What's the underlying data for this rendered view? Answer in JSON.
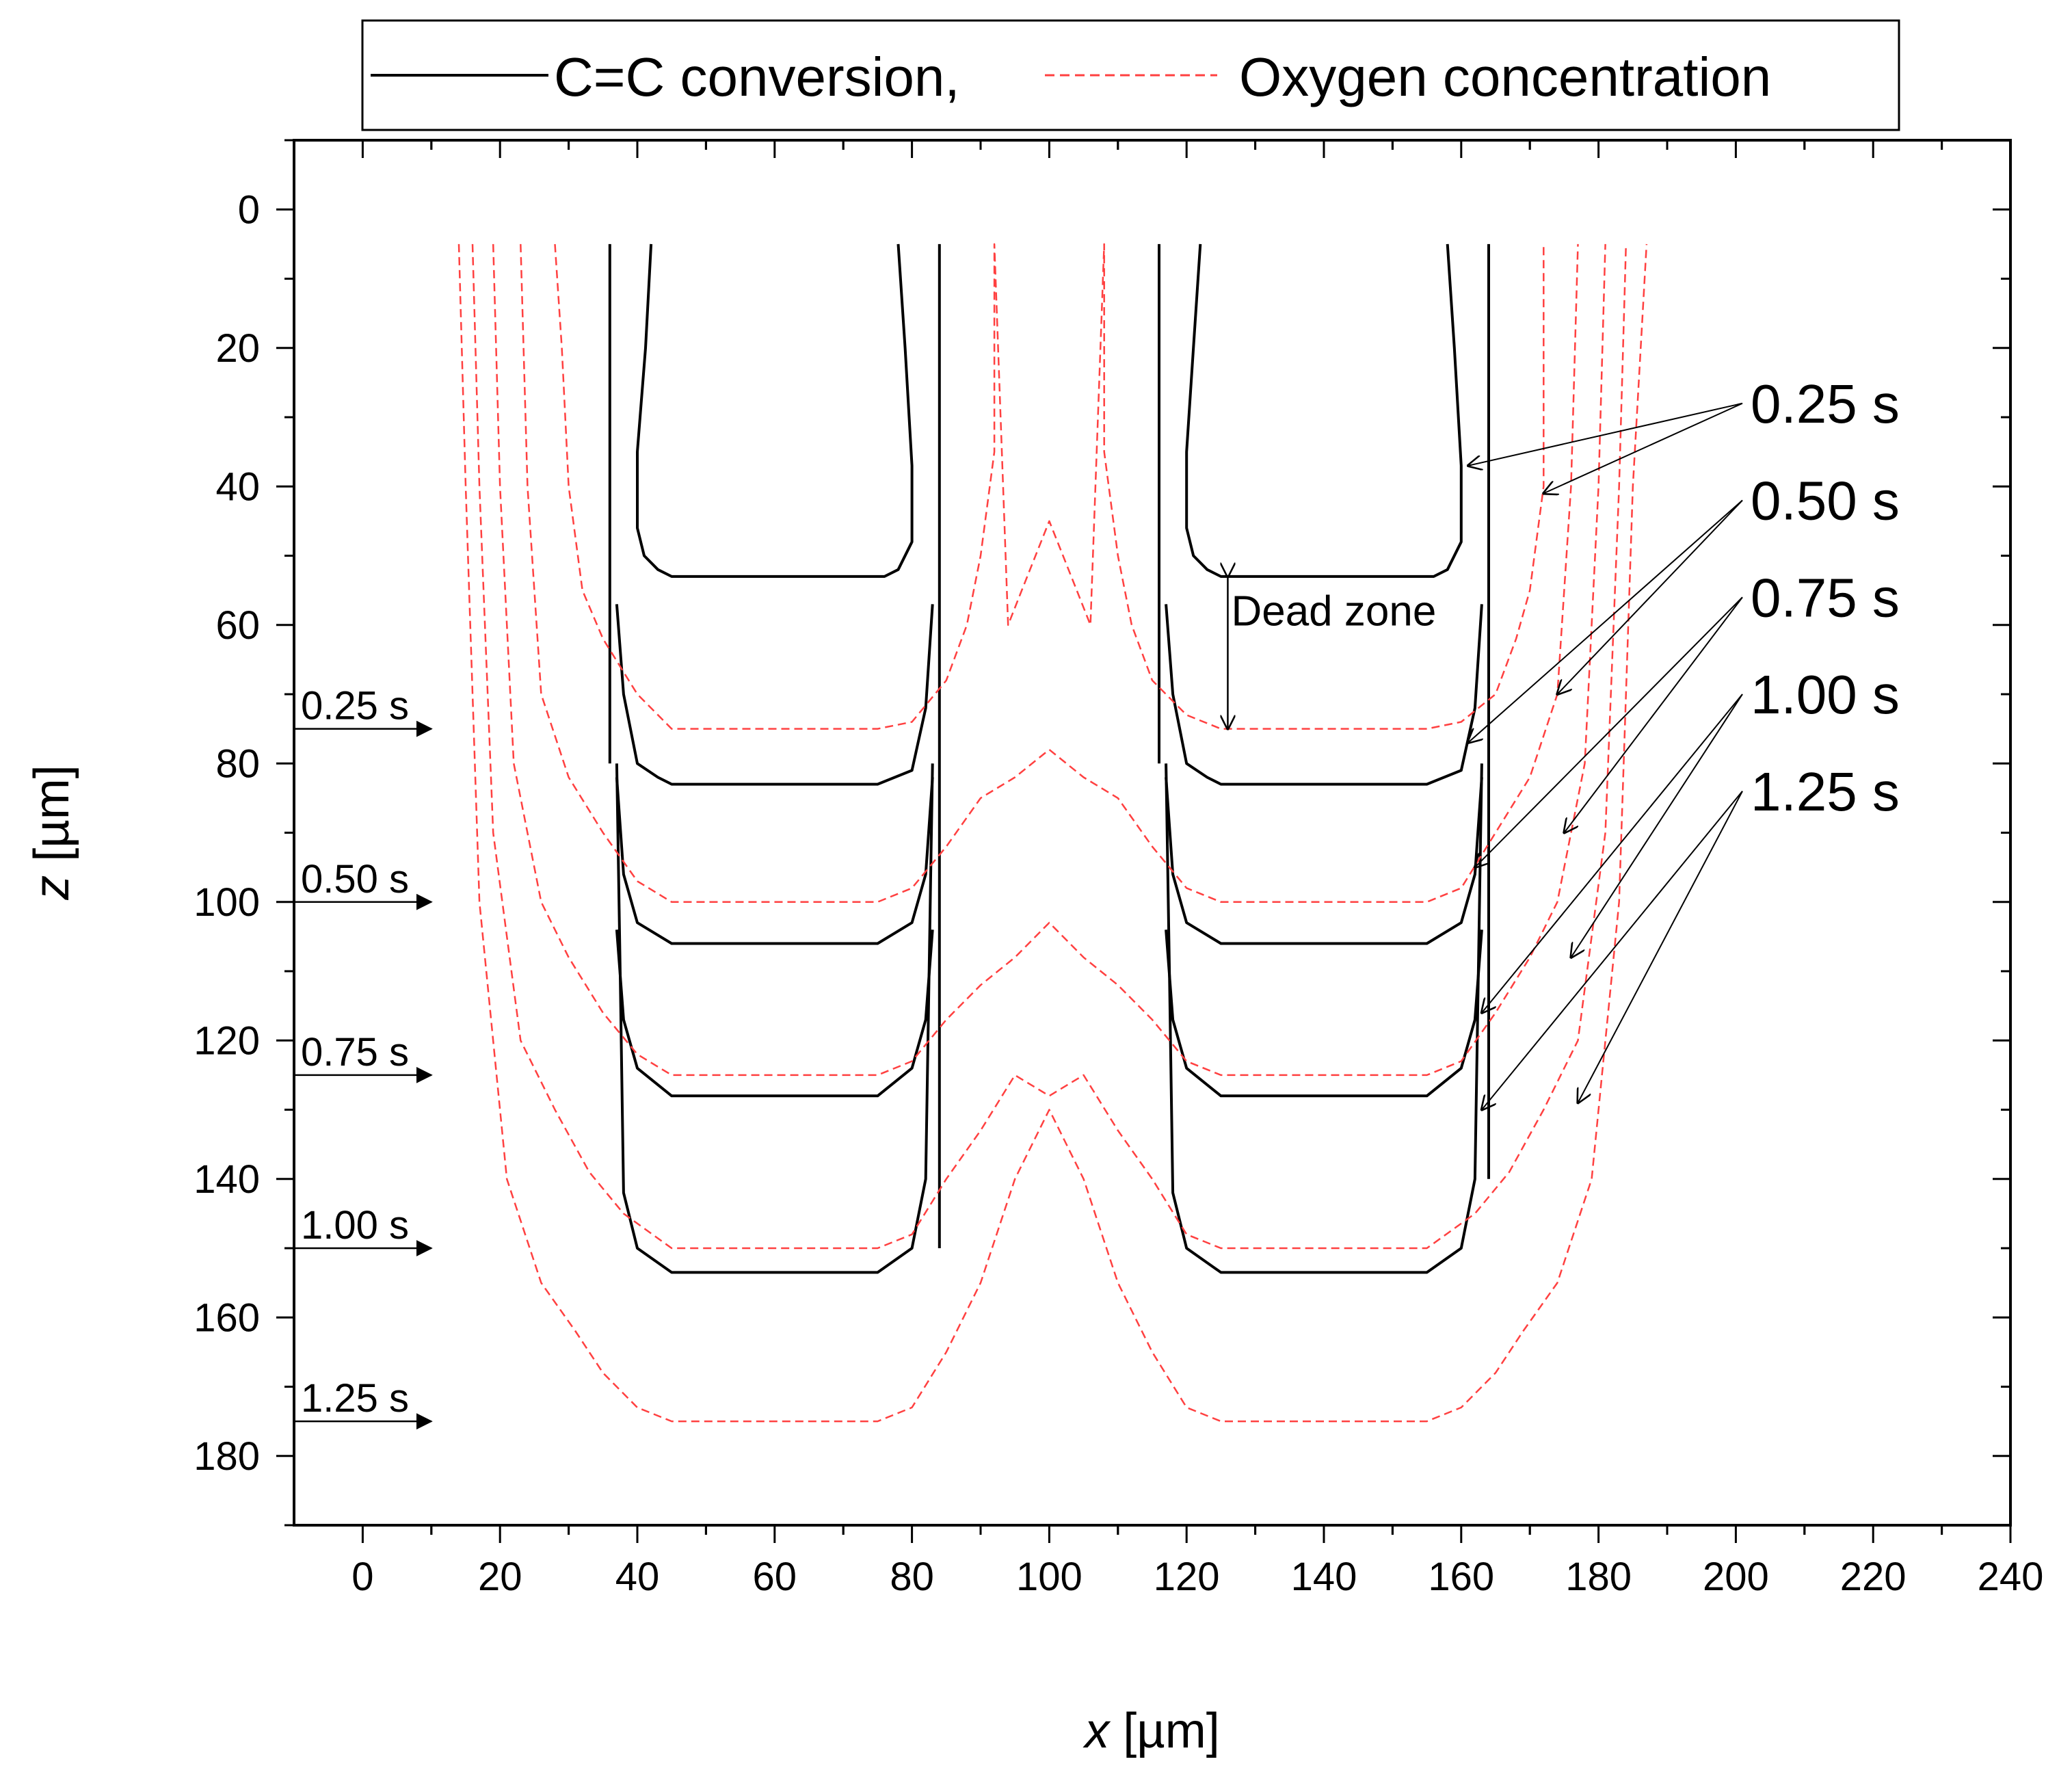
{
  "chart_data": {
    "type": "line",
    "xlabel_var": "x",
    "xlabel_unit": " [µm]",
    "ylabel_var": "z",
    "ylabel_unit": " [µm]",
    "xlim": [
      -10,
      240
    ],
    "ylim": [
      190,
      -10
    ],
    "xticks": [
      0,
      20,
      40,
      60,
      80,
      100,
      120,
      140,
      160,
      180,
      200,
      220,
      240
    ],
    "yticks": [
      0,
      20,
      40,
      60,
      80,
      100,
      120,
      140,
      160,
      180
    ],
    "legend": {
      "position": "top-center",
      "entries": [
        {
          "label": "C=C conversion,",
          "style": "solid",
          "color": "#000000"
        },
        {
          "label": "Oxygen concentration",
          "style": "dashed",
          "color": "#ff4040"
        }
      ]
    },
    "annotations": {
      "dead_zone": {
        "label": "Dead zone",
        "x": 126,
        "z_top": 53,
        "z_bottom": 75
      },
      "left_time_labels": [
        {
          "label": "0.25 s",
          "z": 75
        },
        {
          "label": "0.50 s",
          "z": 100
        },
        {
          "label": "0.75 s",
          "z": 125
        },
        {
          "label": "1.00 s",
          "z": 150
        },
        {
          "label": "1.25 s",
          "z": 175
        }
      ],
      "right_time_labels": [
        {
          "label": "0.25 s",
          "z": 28,
          "targets": [
            [
              161,
              37
            ],
            [
              172,
              41
            ]
          ]
        },
        {
          "label": "0.50 s",
          "z": 42,
          "targets": [
            [
              161,
              77
            ],
            [
              174,
              70
            ]
          ]
        },
        {
          "label": "0.75 s",
          "z": 56,
          "targets": [
            [
              162,
              95
            ],
            [
              175,
              90
            ]
          ]
        },
        {
          "label": "1.00 s",
          "z": 70,
          "targets": [
            [
              163,
              116
            ],
            [
              176,
              108
            ]
          ]
        },
        {
          "label": "1.25 s",
          "z": 84,
          "targets": [
            [
              163,
              130
            ],
            [
              177,
              129
            ]
          ]
        }
      ]
    },
    "series": [
      {
        "name": "C=C conversion t=0.25 s (left)",
        "style": "solid",
        "x": [
          42,
          41.2,
          40,
          40,
          41,
          43,
          45,
          54,
          66,
          76,
          78,
          80,
          80,
          79,
          78
        ],
        "z": [
          5,
          20,
          35,
          46,
          50,
          52,
          53,
          53,
          53,
          53,
          52,
          48,
          37,
          20,
          5
        ]
      },
      {
        "name": "C=C conversion t=0.25 s (right)",
        "style": "solid",
        "x": [
          122,
          121,
          120,
          120,
          121,
          123,
          125,
          134,
          146,
          156,
          158,
          160,
          160,
          159,
          158
        ],
        "z": [
          5,
          20,
          35,
          46,
          50,
          52,
          53,
          53,
          53,
          53,
          52,
          48,
          37,
          20,
          5
        ]
      },
      {
        "name": "C=C conversion t=0.50 s (left)",
        "style": "solid",
        "x": [
          37,
          38,
          40,
          43,
          45,
          55,
          65,
          75,
          80,
          82,
          83
        ],
        "z": [
          57,
          70,
          80,
          82,
          83,
          83,
          83,
          83,
          81,
          72,
          57
        ]
      },
      {
        "name": "C=C conversion t=0.50 s (right)",
        "style": "solid",
        "x": [
          117,
          118,
          120,
          123,
          125,
          135,
          145,
          155,
          160,
          162,
          163
        ],
        "z": [
          57,
          70,
          80,
          82,
          83,
          83,
          83,
          83,
          81,
          72,
          57
        ]
      },
      {
        "name": "C=C conversion t=0.75 s (left)",
        "style": "solid",
        "x": [
          37,
          38,
          40,
          45,
          55,
          65,
          75,
          80,
          82,
          83
        ],
        "z": [
          82,
          96,
          103,
          106,
          106,
          106,
          106,
          103,
          96,
          82
        ]
      },
      {
        "name": "C=C conversion t=0.75 s (right)",
        "style": "solid",
        "x": [
          117,
          118,
          120,
          125,
          135,
          145,
          155,
          160,
          162,
          163
        ],
        "z": [
          82,
          96,
          103,
          106,
          106,
          106,
          106,
          103,
          96,
          82
        ]
      },
      {
        "name": "C=C conversion t=1.00 s (left)",
        "style": "solid",
        "x": [
          37,
          38,
          40,
          45,
          55,
          65,
          75,
          80,
          82,
          83
        ],
        "z": [
          104,
          117,
          124,
          128,
          128,
          128,
          128,
          124,
          117,
          104
        ]
      },
      {
        "name": "C=C conversion t=1.00 s (right)",
        "style": "solid",
        "x": [
          117,
          118,
          120,
          125,
          135,
          145,
          155,
          160,
          162,
          163
        ],
        "z": [
          104,
          117,
          124,
          128,
          128,
          128,
          128,
          124,
          117,
          104
        ]
      },
      {
        "name": "C=C conversion t=1.25 s (left)",
        "style": "solid",
        "x": [
          37,
          37.5,
          38,
          40,
          45,
          55,
          65,
          75,
          80,
          82,
          83
        ],
        "z": [
          80,
          110,
          142,
          150,
          153.5,
          153.5,
          153.5,
          153.5,
          150,
          140,
          80
        ]
      },
      {
        "name": "C=C conversion t=1.25 s (right)",
        "style": "solid",
        "x": [
          117,
          117.5,
          118,
          120,
          125,
          135,
          145,
          155,
          160,
          162,
          163
        ],
        "z": [
          80,
          110,
          142,
          150,
          153.5,
          153.5,
          153.5,
          153.5,
          150,
          140,
          80
        ]
      },
      {
        "name": "Mask edge (left)",
        "style": "solid",
        "x": [
          36,
          36
        ],
        "z": [
          5,
          80
        ]
      },
      {
        "name": "Mask edge (centre-left)",
        "style": "solid",
        "x": [
          84,
          84
        ],
        "z": [
          5,
          150
        ]
      },
      {
        "name": "Mask edge (centre-right)",
        "style": "solid",
        "x": [
          116,
          116
        ],
        "z": [
          5,
          80
        ]
      },
      {
        "name": "Mask edge (right)",
        "style": "solid",
        "x": [
          164,
          164
        ],
        "z": [
          5,
          140
        ]
      },
      {
        "name": "Oxygen concentration t=0.25 s",
        "style": "dashed",
        "x": [
          28,
          29,
          30,
          32,
          35,
          40,
          45,
          55,
          65,
          75,
          80,
          85,
          88,
          90,
          92,
          92,
          92,
          94,
          96,
          98,
          100,
          102,
          104,
          106,
          108,
          108,
          108,
          110,
          112,
          115,
          120,
          125,
          135,
          145,
          155,
          160,
          165,
          168,
          170,
          172,
          172
        ],
        "z": [
          5,
          20,
          40,
          55,
          62,
          70,
          75,
          75,
          75,
          75,
          74,
          68,
          60,
          50,
          35,
          20,
          5,
          60,
          55,
          50,
          45,
          50,
          55,
          60,
          5,
          20,
          35,
          50,
          60,
          68,
          73,
          75,
          75,
          75,
          75,
          74,
          70,
          62,
          55,
          40,
          5
        ]
      },
      {
        "name": "Oxygen concentration t=0.50 s",
        "style": "dashed",
        "x": [
          23,
          24,
          26,
          30,
          35,
          40,
          45,
          55,
          65,
          75,
          80,
          85,
          90,
          95,
          100,
          105,
          110,
          115,
          120,
          125,
          135,
          145,
          155,
          160,
          165,
          170,
          174,
          176,
          177
        ],
        "z": [
          5,
          40,
          70,
          82,
          90,
          97,
          100,
          100,
          100,
          100,
          98,
          92,
          85,
          82,
          78,
          82,
          85,
          92,
          98,
          100,
          100,
          100,
          100,
          98,
          90,
          82,
          70,
          40,
          5
        ]
      },
      {
        "name": "Oxygen concentration t=0.75 s",
        "style": "dashed",
        "x": [
          19,
          20,
          22,
          26,
          30,
          35,
          40,
          45,
          55,
          65,
          75,
          80,
          85,
          90,
          95,
          100,
          105,
          110,
          115,
          120,
          125,
          135,
          145,
          155,
          160,
          165,
          170,
          174,
          178,
          180,
          181
        ],
        "z": [
          5,
          40,
          80,
          100,
          108,
          116,
          122,
          125,
          125,
          125,
          125,
          123,
          117,
          112,
          108,
          103,
          108,
          112,
          117,
          123,
          125,
          125,
          125,
          125,
          123,
          116,
          108,
          100,
          80,
          40,
          5
        ]
      },
      {
        "name": "Oxygen concentration t=1.00 s",
        "style": "dashed",
        "x": [
          16,
          17,
          19,
          23,
          28,
          33,
          38,
          45,
          55,
          65,
          75,
          80,
          85,
          90,
          95,
          100,
          105,
          110,
          115,
          120,
          125,
          135,
          145,
          155,
          162,
          167,
          172,
          177,
          181,
          183,
          184
        ],
        "z": [
          5,
          40,
          90,
          120,
          130,
          139,
          145,
          150,
          150,
          150,
          150,
          148,
          140,
          133,
          125,
          128,
          125,
          133,
          140,
          148,
          150,
          150,
          150,
          150,
          145,
          139,
          130,
          120,
          90,
          40,
          5
        ]
      },
      {
        "name": "Oxygen concentration t=1.25 s",
        "style": "dashed",
        "x": [
          14,
          15,
          17,
          21,
          26,
          31,
          35,
          40,
          45,
          55,
          65,
          75,
          80,
          85,
          90,
          95,
          100,
          105,
          110,
          115,
          120,
          125,
          135,
          145,
          155,
          160,
          165,
          169,
          174,
          179,
          183,
          185,
          187
        ],
        "z": [
          5,
          40,
          100,
          140,
          155,
          162,
          168,
          173,
          175,
          175,
          175,
          175,
          173,
          165,
          155,
          140,
          130,
          140,
          155,
          165,
          173,
          175,
          175,
          175,
          175,
          173,
          168,
          162,
          155,
          140,
          100,
          40,
          5
        ]
      }
    ]
  }
}
